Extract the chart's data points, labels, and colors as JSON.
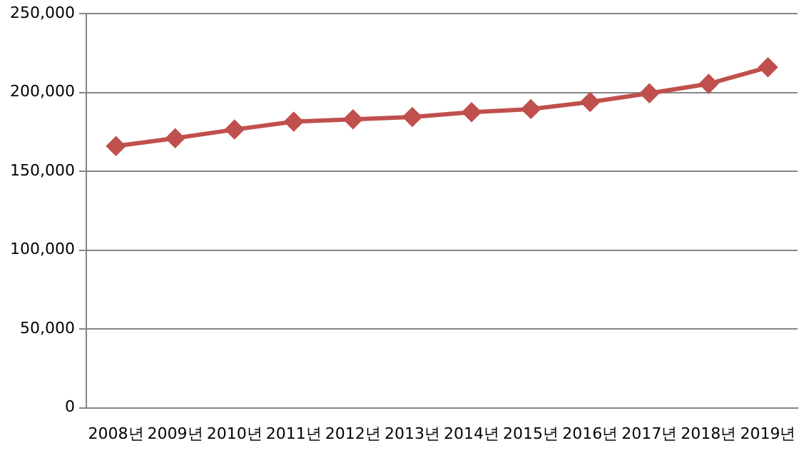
{
  "chart_data": {
    "type": "line",
    "categories": [
      "2008년",
      "2009년",
      "2010년",
      "2011년",
      "2012년",
      "2013년",
      "2014년",
      "2015년",
      "2016년",
      "2017년",
      "2018년",
      "2019년"
    ],
    "series": [
      {
        "color": "#c0504d",
        "values": [
          166000,
          171000,
          176500,
          181500,
          183000,
          184500,
          187500,
          189500,
          194000,
          199500,
          205500,
          216000
        ]
      }
    ],
    "ylim": [
      0,
      250000
    ],
    "yticks": [
      {
        "value": 0,
        "label": "0"
      },
      {
        "value": 50000,
        "label": "50,000"
      },
      {
        "value": 100000,
        "label": "100,000"
      },
      {
        "value": 150000,
        "label": "150,000"
      },
      {
        "value": 200000,
        "label": "200,000"
      },
      {
        "value": 250000,
        "label": "250,000"
      }
    ],
    "grid": "y",
    "marker": "diamond",
    "legend": false
  }
}
